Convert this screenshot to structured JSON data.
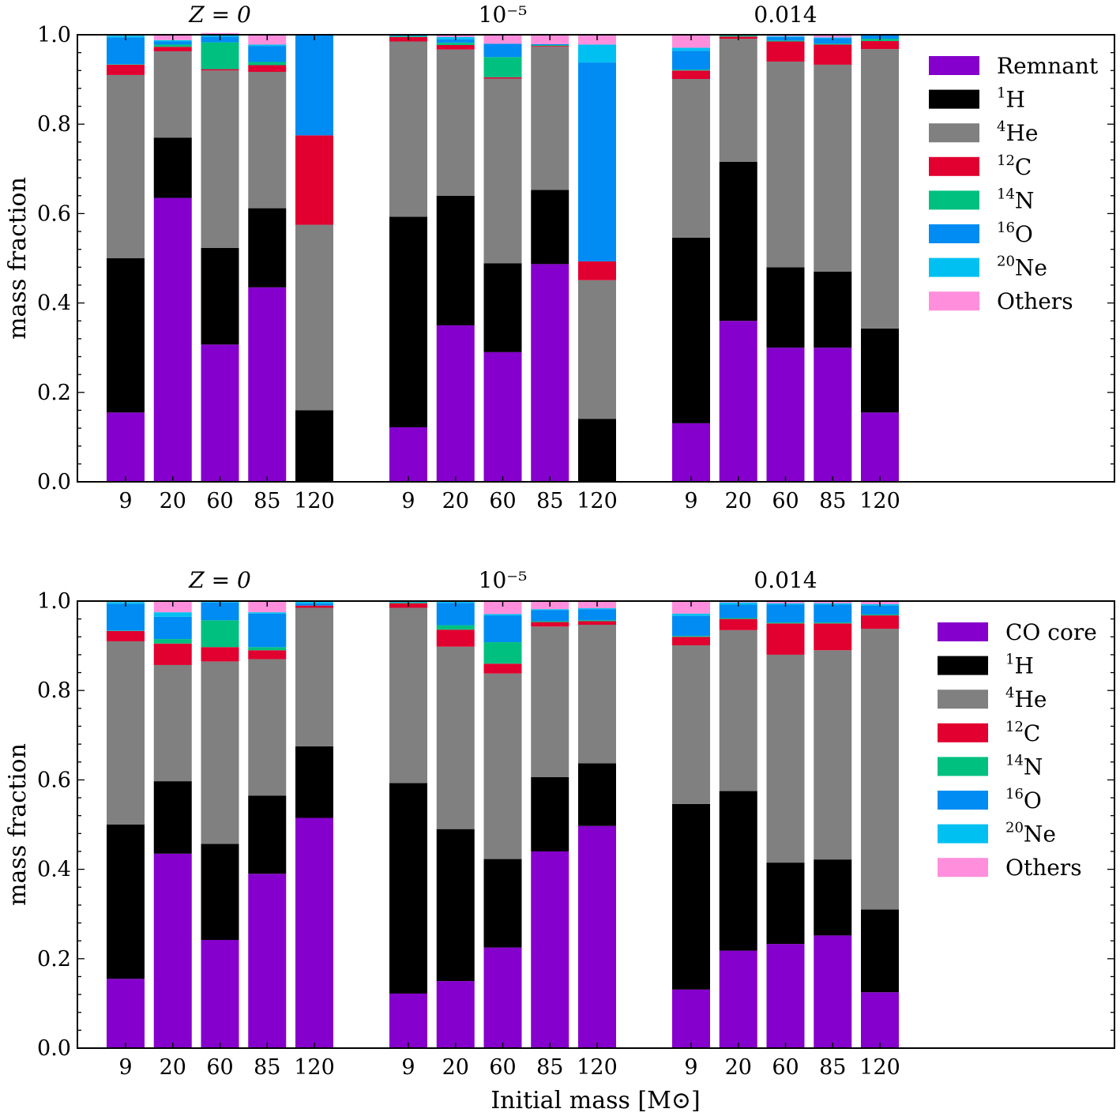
{
  "figure": {
    "xlabel": "Initial mass [M⊙]"
  },
  "chart_data": [
    {
      "type": "bar",
      "stacked": true,
      "panel": "top",
      "ylabel": "mass fraction",
      "ylim": [
        0,
        1.0
      ],
      "yticks": [
        "0.0",
        "0.2",
        "0.4",
        "0.6",
        "0.8",
        "1.0"
      ],
      "groups": [
        {
          "title": "Z = 0",
          "categories": [
            "9",
            "20",
            "60",
            "85",
            "120"
          ]
        },
        {
          "title": "10⁻⁵",
          "categories": [
            "9",
            "20",
            "60",
            "85",
            "120"
          ]
        },
        {
          "title": "0.014",
          "categories": [
            "9",
            "20",
            "60",
            "85",
            "120"
          ]
        }
      ],
      "legend_placement": "upper right",
      "series": [
        {
          "name": "Remnant",
          "color": "#8500cc",
          "legend": {
            "sup": "",
            "text": "Remnant"
          },
          "values": [
            [
              0.155,
              0.635,
              0.307,
              0.435,
              0.0
            ],
            [
              0.122,
              0.35,
              0.29,
              0.487,
              0.0
            ],
            [
              0.131,
              0.36,
              0.3,
              0.3,
              0.155
            ]
          ]
        },
        {
          "name": "1H",
          "color": "#000000",
          "legend": {
            "sup": "1",
            "text": "H"
          },
          "values": [
            [
              0.345,
              0.135,
              0.216,
              0.177,
              0.16
            ],
            [
              0.471,
              0.29,
              0.199,
              0.166,
              0.141
            ],
            [
              0.415,
              0.356,
              0.18,
              0.17,
              0.188
            ]
          ]
        },
        {
          "name": "4He",
          "color": "#808080",
          "legend": {
            "sup": "4",
            "text": "He"
          },
          "values": [
            [
              0.41,
              0.193,
              0.397,
              0.305,
              0.415
            ],
            [
              0.392,
              0.327,
              0.413,
              0.32,
              0.31
            ],
            [
              0.355,
              0.275,
              0.46,
              0.463,
              0.625
            ]
          ]
        },
        {
          "name": "12C",
          "color": "#e1002f",
          "legend": {
            "sup": "12",
            "text": "C"
          },
          "values": [
            [
              0.023,
              0.01,
              0.003,
              0.015,
              0.2
            ],
            [
              0.01,
              0.01,
              0.003,
              0.002,
              0.042
            ],
            [
              0.019,
              0.005,
              0.045,
              0.045,
              0.018
            ]
          ]
        },
        {
          "name": "14N",
          "color": "#00c07f",
          "legend": {
            "sup": "14",
            "text": "N"
          },
          "values": [
            [
              0.001,
              0.005,
              0.06,
              0.007,
              0.0
            ],
            [
              0.002,
              0.005,
              0.045,
              0.002,
              0.0
            ],
            [
              0.002,
              0.002,
              0.002,
              0.002,
              0.005
            ]
          ]
        },
        {
          "name": "16O",
          "color": "#008cf2",
          "legend": {
            "sup": "16",
            "text": "O"
          },
          "values": [
            [
              0.06,
              0.007,
              0.013,
              0.036,
              0.225
            ],
            [
              0.003,
              0.008,
              0.03,
              0.002,
              0.445
            ],
            [
              0.042,
              0.001,
              0.008,
              0.012,
              0.008
            ]
          ]
        },
        {
          "name": "20Ne",
          "color": "#00c0f2",
          "legend": {
            "sup": "20",
            "text": "Ne"
          },
          "values": [
            [
              0.004,
              0.003,
              0.005,
              0.003,
              0.0
            ],
            [
              0.0,
              0.005,
              0.0,
              0.0,
              0.04
            ],
            [
              0.007,
              0.001,
              0.002,
              0.002,
              0.002
            ]
          ]
        },
        {
          "name": "Others",
          "color": "#ff8fdc",
          "legend": {
            "sup": "",
            "text": "Others"
          },
          "values": [
            [
              0.002,
              0.012,
              0.003,
              0.022,
              0.0
            ],
            [
              0.0,
              0.005,
              0.02,
              0.021,
              0.022
            ],
            [
              0.029,
              0.0,
              0.003,
              0.006,
              0.0
            ]
          ]
        }
      ]
    },
    {
      "type": "bar",
      "stacked": true,
      "panel": "bottom",
      "ylabel": "mass fraction",
      "ylim": [
        0,
        1.0
      ],
      "yticks": [
        "0.0",
        "0.2",
        "0.4",
        "0.6",
        "0.8",
        "1.0"
      ],
      "groups": [
        {
          "title": "Z = 0",
          "categories": [
            "9",
            "20",
            "60",
            "85",
            "120"
          ]
        },
        {
          "title": "10⁻⁵",
          "categories": [
            "9",
            "20",
            "60",
            "85",
            "120"
          ]
        },
        {
          "title": "0.014",
          "categories": [
            "9",
            "20",
            "60",
            "85",
            "120"
          ]
        }
      ],
      "legend_placement": "upper right",
      "series": [
        {
          "name": "CO core",
          "color": "#8500cc",
          "legend": {
            "sup": "",
            "text": "CO core"
          },
          "values": [
            [
              0.155,
              0.435,
              0.242,
              0.39,
              0.515
            ],
            [
              0.122,
              0.15,
              0.225,
              0.44,
              0.497
            ],
            [
              0.131,
              0.218,
              0.233,
              0.252,
              0.125
            ]
          ]
        },
        {
          "name": "1H",
          "color": "#000000",
          "legend": {
            "sup": "1",
            "text": "H"
          },
          "values": [
            [
              0.345,
              0.162,
              0.215,
              0.175,
              0.16
            ],
            [
              0.471,
              0.34,
              0.198,
              0.166,
              0.14
            ],
            [
              0.415,
              0.357,
              0.182,
              0.17,
              0.185
            ]
          ]
        },
        {
          "name": "4He",
          "color": "#808080",
          "legend": {
            "sup": "4",
            "text": "He"
          },
          "values": [
            [
              0.41,
              0.26,
              0.408,
              0.305,
              0.31
            ],
            [
              0.392,
              0.408,
              0.415,
              0.337,
              0.31
            ],
            [
              0.355,
              0.36,
              0.465,
              0.468,
              0.628
            ]
          ]
        },
        {
          "name": "12C",
          "color": "#e1002f",
          "legend": {
            "sup": "12",
            "text": "C"
          },
          "values": [
            [
              0.023,
              0.048,
              0.032,
              0.02,
              0.005
            ],
            [
              0.01,
              0.038,
              0.022,
              0.01,
              0.008
            ],
            [
              0.019,
              0.025,
              0.07,
              0.06,
              0.03
            ]
          ]
        },
        {
          "name": "14N",
          "color": "#00c07f",
          "legend": {
            "sup": "14",
            "text": "N"
          },
          "values": [
            [
              0.001,
              0.01,
              0.06,
              0.007,
              0.0
            ],
            [
              0.002,
              0.01,
              0.048,
              0.002,
              0.002
            ],
            [
              0.002,
              0.002,
              0.002,
              0.002,
              0.002
            ]
          ]
        },
        {
          "name": "16O",
          "color": "#008cf2",
          "legend": {
            "sup": "16",
            "text": "O"
          },
          "values": [
            [
              0.06,
              0.05,
              0.04,
              0.075,
              0.005
            ],
            [
              0.003,
              0.05,
              0.06,
              0.025,
              0.025
            ],
            [
              0.045,
              0.03,
              0.04,
              0.04,
              0.02
            ]
          ]
        },
        {
          "name": "20Ne",
          "color": "#00c0f2",
          "legend": {
            "sup": "20",
            "text": "Ne"
          },
          "values": [
            [
              0.004,
              0.01,
              0.003,
              0.003,
              0.005
            ],
            [
              0.0,
              0.004,
              0.003,
              0.002,
              0.002
            ],
            [
              0.005,
              0.005,
              0.003,
              0.003,
              0.003
            ]
          ]
        },
        {
          "name": "Others",
          "color": "#ff8fdc",
          "legend": {
            "sup": "",
            "text": "Others"
          },
          "values": [
            [
              0.002,
              0.025,
              0.0,
              0.025,
              0.0
            ],
            [
              0.0,
              0.0,
              0.029,
              0.018,
              0.016
            ],
            [
              0.028,
              0.003,
              0.005,
              0.005,
              0.007
            ]
          ]
        }
      ]
    }
  ]
}
